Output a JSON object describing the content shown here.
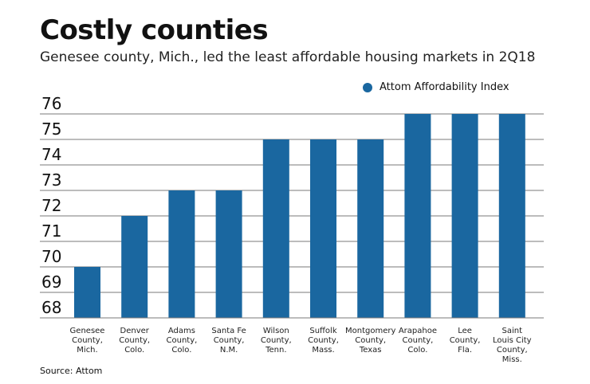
{
  "title": "Costly counties",
  "subtitle": "Genesee county, Mich., led the least affordable housing markets in 2Q18",
  "source": "Source: Attom",
  "colors": {
    "bar": "#1a67a0",
    "grid": "#7a7a7a"
  },
  "chart_data": {
    "type": "bar",
    "title": "Costly counties",
    "xlabel": "",
    "ylabel": "",
    "ylim": [
      68,
      76
    ],
    "yticks": [
      68,
      69,
      70,
      71,
      72,
      73,
      74,
      75,
      76
    ],
    "grid": true,
    "legend_position": "top-right",
    "categories": [
      [
        "Genesee",
        "County,",
        "Mich."
      ],
      [
        "Denver",
        "County,",
        "Colo."
      ],
      [
        "Adams",
        "County,",
        "Colo."
      ],
      [
        "Santa Fe",
        "County,",
        "N.M."
      ],
      [
        "Wilson",
        "County,",
        "Tenn."
      ],
      [
        "Suffolk",
        "County,",
        "Mass."
      ],
      [
        "Montgomery",
        "County,",
        "Texas"
      ],
      [
        "Arapahoe",
        "County,",
        "Colo."
      ],
      [
        "Lee",
        "County,",
        "Fla."
      ],
      [
        "Saint",
        "Louis City",
        "County,",
        "Miss."
      ]
    ],
    "series": [
      {
        "name": "Attom Affordability Index",
        "values": [
          70,
          72,
          73,
          73,
          75,
          75,
          75,
          76,
          76,
          76
        ]
      }
    ]
  }
}
